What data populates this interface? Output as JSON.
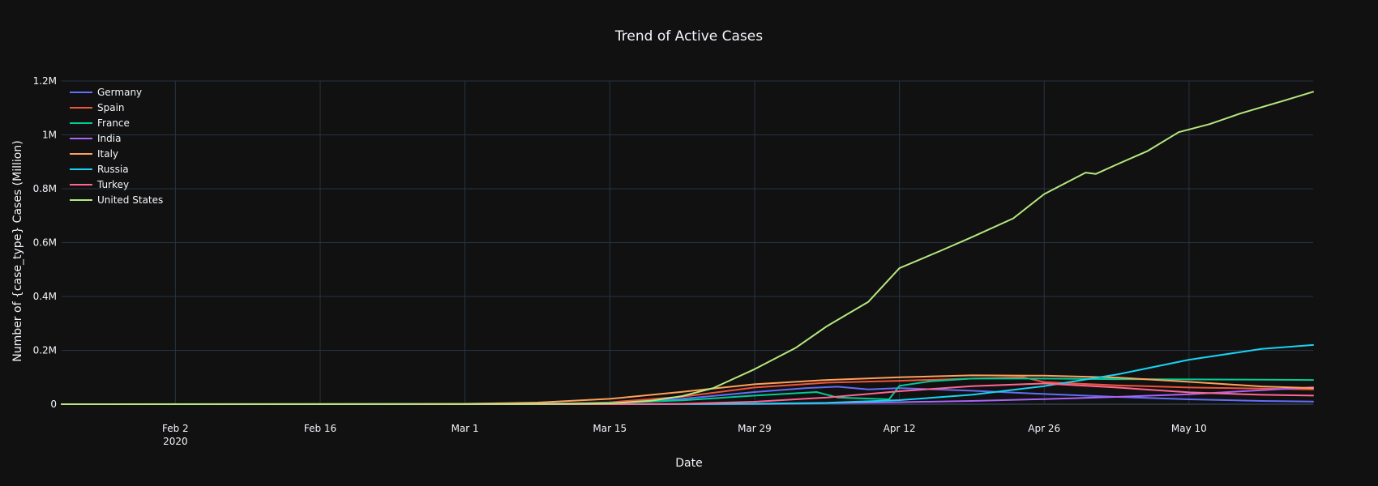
{
  "chart_data": {
    "type": "line",
    "title": "Trend of Active Cases",
    "xlabel": "Date",
    "ylabel": "Number of {case_type} Cases (Million)",
    "x_range": [
      "2020-01-22",
      "2020-05-22"
    ],
    "x_ticks": [
      {
        "date": "2020-02-02",
        "label": "Feb 2",
        "sublabel": "2020"
      },
      {
        "date": "2020-02-16",
        "label": "Feb 16",
        "sublabel": ""
      },
      {
        "date": "2020-03-01",
        "label": "Mar 1",
        "sublabel": ""
      },
      {
        "date": "2020-03-15",
        "label": "Mar 15",
        "sublabel": ""
      },
      {
        "date": "2020-03-29",
        "label": "Mar 29",
        "sublabel": ""
      },
      {
        "date": "2020-04-12",
        "label": "Apr 12",
        "sublabel": ""
      },
      {
        "date": "2020-04-26",
        "label": "Apr 26",
        "sublabel": ""
      },
      {
        "date": "2020-05-10",
        "label": "May 10",
        "sublabel": ""
      }
    ],
    "ylim": [
      0,
      1200000
    ],
    "y_ticks": [
      {
        "value": 0,
        "label": "0"
      },
      {
        "value": 200000,
        "label": "0.2M"
      },
      {
        "value": 400000,
        "label": "0.4M"
      },
      {
        "value": 600000,
        "label": "0.6M"
      },
      {
        "value": 800000,
        "label": "0.8M"
      },
      {
        "value": 1000000,
        "label": "1M"
      },
      {
        "value": 1200000,
        "label": "1.2M"
      }
    ],
    "grid": true,
    "legend_position": "top-left",
    "background_color": "#111111",
    "series": [
      {
        "name": "Germany",
        "color": "#636efa",
        "points": [
          [
            "2020-01-22",
            0
          ],
          [
            "2020-03-05",
            400
          ],
          [
            "2020-03-15",
            5000
          ],
          [
            "2020-03-22",
            20000
          ],
          [
            "2020-03-29",
            45000
          ],
          [
            "2020-04-03",
            60000
          ],
          [
            "2020-04-06",
            65000
          ],
          [
            "2020-04-09",
            55000
          ],
          [
            "2020-04-12",
            60000
          ],
          [
            "2020-04-19",
            50000
          ],
          [
            "2020-04-26",
            38000
          ],
          [
            "2020-05-03",
            27000
          ],
          [
            "2020-05-10",
            18000
          ],
          [
            "2020-05-17",
            12000
          ],
          [
            "2020-05-22",
            10000
          ]
        ]
      },
      {
        "name": "Spain",
        "color": "#ef553b",
        "points": [
          [
            "2020-01-22",
            0
          ],
          [
            "2020-03-10",
            1500
          ],
          [
            "2020-03-15",
            7000
          ],
          [
            "2020-03-22",
            28000
          ],
          [
            "2020-03-29",
            62000
          ],
          [
            "2020-04-05",
            80000
          ],
          [
            "2020-04-12",
            87000
          ],
          [
            "2020-04-19",
            95000
          ],
          [
            "2020-04-24",
            100000
          ],
          [
            "2020-04-26",
            82000
          ],
          [
            "2020-05-03",
            70000
          ],
          [
            "2020-05-10",
            62000
          ],
          [
            "2020-05-17",
            58000
          ],
          [
            "2020-05-22",
            55000
          ]
        ]
      },
      {
        "name": "France",
        "color": "#00cc96",
        "points": [
          [
            "2020-01-22",
            0
          ],
          [
            "2020-03-10",
            1000
          ],
          [
            "2020-03-15",
            4500
          ],
          [
            "2020-03-22",
            14000
          ],
          [
            "2020-03-29",
            32000
          ],
          [
            "2020-04-04",
            45000
          ],
          [
            "2020-04-06",
            25000
          ],
          [
            "2020-04-11",
            18000
          ],
          [
            "2020-04-12",
            68000
          ],
          [
            "2020-04-15",
            85000
          ],
          [
            "2020-04-19",
            95000
          ],
          [
            "2020-04-26",
            95000
          ],
          [
            "2020-05-03",
            93000
          ],
          [
            "2020-05-10",
            92000
          ],
          [
            "2020-05-17",
            91000
          ],
          [
            "2020-05-22",
            90000
          ]
        ]
      },
      {
        "name": "India",
        "color": "#ab63fa",
        "points": [
          [
            "2020-01-22",
            0
          ],
          [
            "2020-03-20",
            200
          ],
          [
            "2020-03-29",
            1000
          ],
          [
            "2020-04-05",
            3500
          ],
          [
            "2020-04-12",
            7500
          ],
          [
            "2020-04-19",
            12000
          ],
          [
            "2020-04-26",
            19000
          ],
          [
            "2020-05-03",
            27000
          ],
          [
            "2020-05-10",
            37000
          ],
          [
            "2020-05-17",
            52000
          ],
          [
            "2020-05-22",
            63000
          ]
        ]
      },
      {
        "name": "Italy",
        "color": "#ffa15a",
        "points": [
          [
            "2020-01-22",
            0
          ],
          [
            "2020-02-25",
            300
          ],
          [
            "2020-03-01",
            1600
          ],
          [
            "2020-03-08",
            6000
          ],
          [
            "2020-03-15",
            20000
          ],
          [
            "2020-03-22",
            46000
          ],
          [
            "2020-03-29",
            74000
          ],
          [
            "2020-04-05",
            90000
          ],
          [
            "2020-04-12",
            100000
          ],
          [
            "2020-04-19",
            107000
          ],
          [
            "2020-04-26",
            106000
          ],
          [
            "2020-05-03",
            99000
          ],
          [
            "2020-05-10",
            83000
          ],
          [
            "2020-05-17",
            66000
          ],
          [
            "2020-05-22",
            60000
          ]
        ]
      },
      {
        "name": "Russia",
        "color": "#19d3f3",
        "points": [
          [
            "2020-01-22",
            0
          ],
          [
            "2020-03-22",
            400
          ],
          [
            "2020-03-29",
            1800
          ],
          [
            "2020-04-05",
            5000
          ],
          [
            "2020-04-12",
            15000
          ],
          [
            "2020-04-19",
            35000
          ],
          [
            "2020-04-26",
            67000
          ],
          [
            "2020-05-03",
            110000
          ],
          [
            "2020-05-10",
            165000
          ],
          [
            "2020-05-17",
            205000
          ],
          [
            "2020-05-22",
            220000
          ]
        ]
      },
      {
        "name": "Turkey",
        "color": "#ff6692",
        "points": [
          [
            "2020-01-22",
            0
          ],
          [
            "2020-03-15",
            50
          ],
          [
            "2020-03-22",
            1500
          ],
          [
            "2020-03-29",
            9000
          ],
          [
            "2020-04-05",
            25000
          ],
          [
            "2020-04-12",
            48000
          ],
          [
            "2020-04-19",
            67000
          ],
          [
            "2020-04-26",
            77000
          ],
          [
            "2020-05-03",
            62000
          ],
          [
            "2020-05-10",
            44000
          ],
          [
            "2020-05-17",
            35000
          ],
          [
            "2020-05-22",
            32000
          ]
        ]
      },
      {
        "name": "United States",
        "color": "#b6e880",
        "points": [
          [
            "2020-01-22",
            0
          ],
          [
            "2020-03-05",
            200
          ],
          [
            "2020-03-12",
            1500
          ],
          [
            "2020-03-15",
            3000
          ],
          [
            "2020-03-19",
            13000
          ],
          [
            "2020-03-22",
            30000
          ],
          [
            "2020-03-25",
            60000
          ],
          [
            "2020-03-29",
            130000
          ],
          [
            "2020-04-02",
            210000
          ],
          [
            "2020-04-05",
            290000
          ],
          [
            "2020-04-09",
            380000
          ],
          [
            "2020-04-12",
            505000
          ],
          [
            "2020-04-16",
            570000
          ],
          [
            "2020-04-19",
            620000
          ],
          [
            "2020-04-23",
            690000
          ],
          [
            "2020-04-26",
            780000
          ],
          [
            "2020-04-30",
            860000
          ],
          [
            "2020-05-01",
            855000
          ],
          [
            "2020-05-03",
            890000
          ],
          [
            "2020-05-06",
            940000
          ],
          [
            "2020-05-09",
            1010000
          ],
          [
            "2020-05-12",
            1040000
          ],
          [
            "2020-05-15",
            1080000
          ],
          [
            "2020-05-19",
            1125000
          ],
          [
            "2020-05-22",
            1160000
          ]
        ]
      }
    ]
  }
}
